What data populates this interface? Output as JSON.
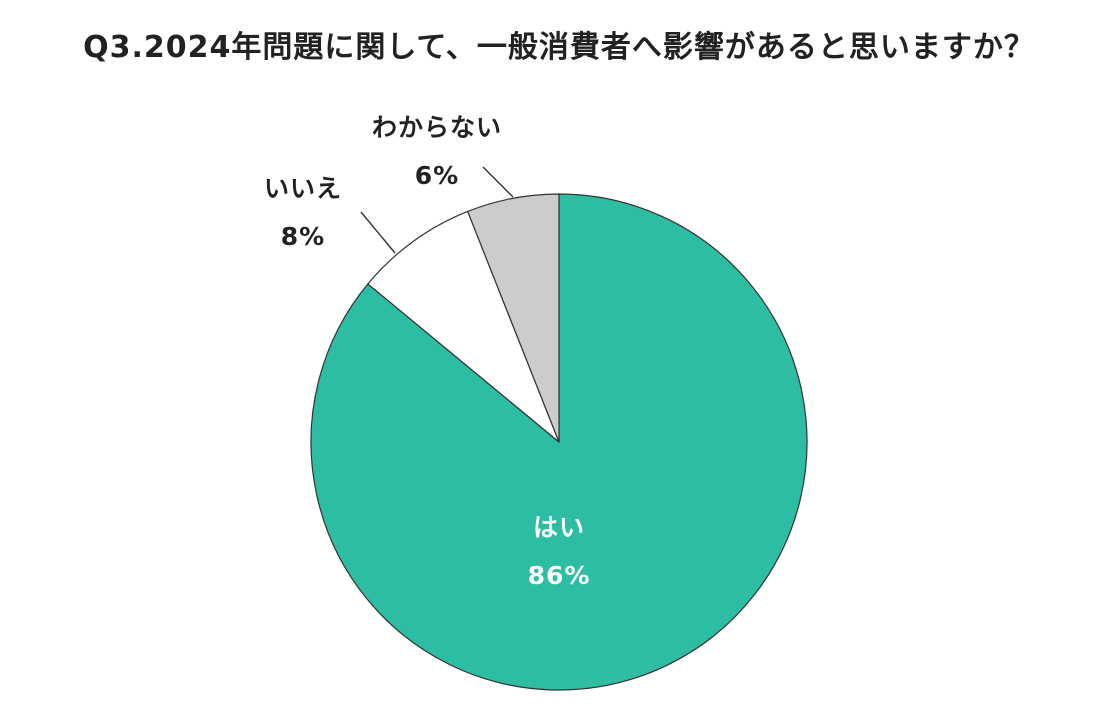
{
  "chart_data": {
    "type": "pie",
    "title": "Q3.2024年問題に関して、一般消費者へ影響があると思いますか？",
    "slices": [
      {
        "label": "はい",
        "value": 86,
        "display": "86%",
        "color": "#2dbda2",
        "label_color": "#ffffff"
      },
      {
        "label": "いいえ",
        "value": 8,
        "display": "8%",
        "color": "#ffffff",
        "label_color": "#222222"
      },
      {
        "label": "わからない",
        "value": 6,
        "display": "6%",
        "color": "#cccccc",
        "label_color": "#222222"
      }
    ],
    "start_angle": "12 o'clock",
    "direction": "clockwise",
    "legend": "none"
  }
}
